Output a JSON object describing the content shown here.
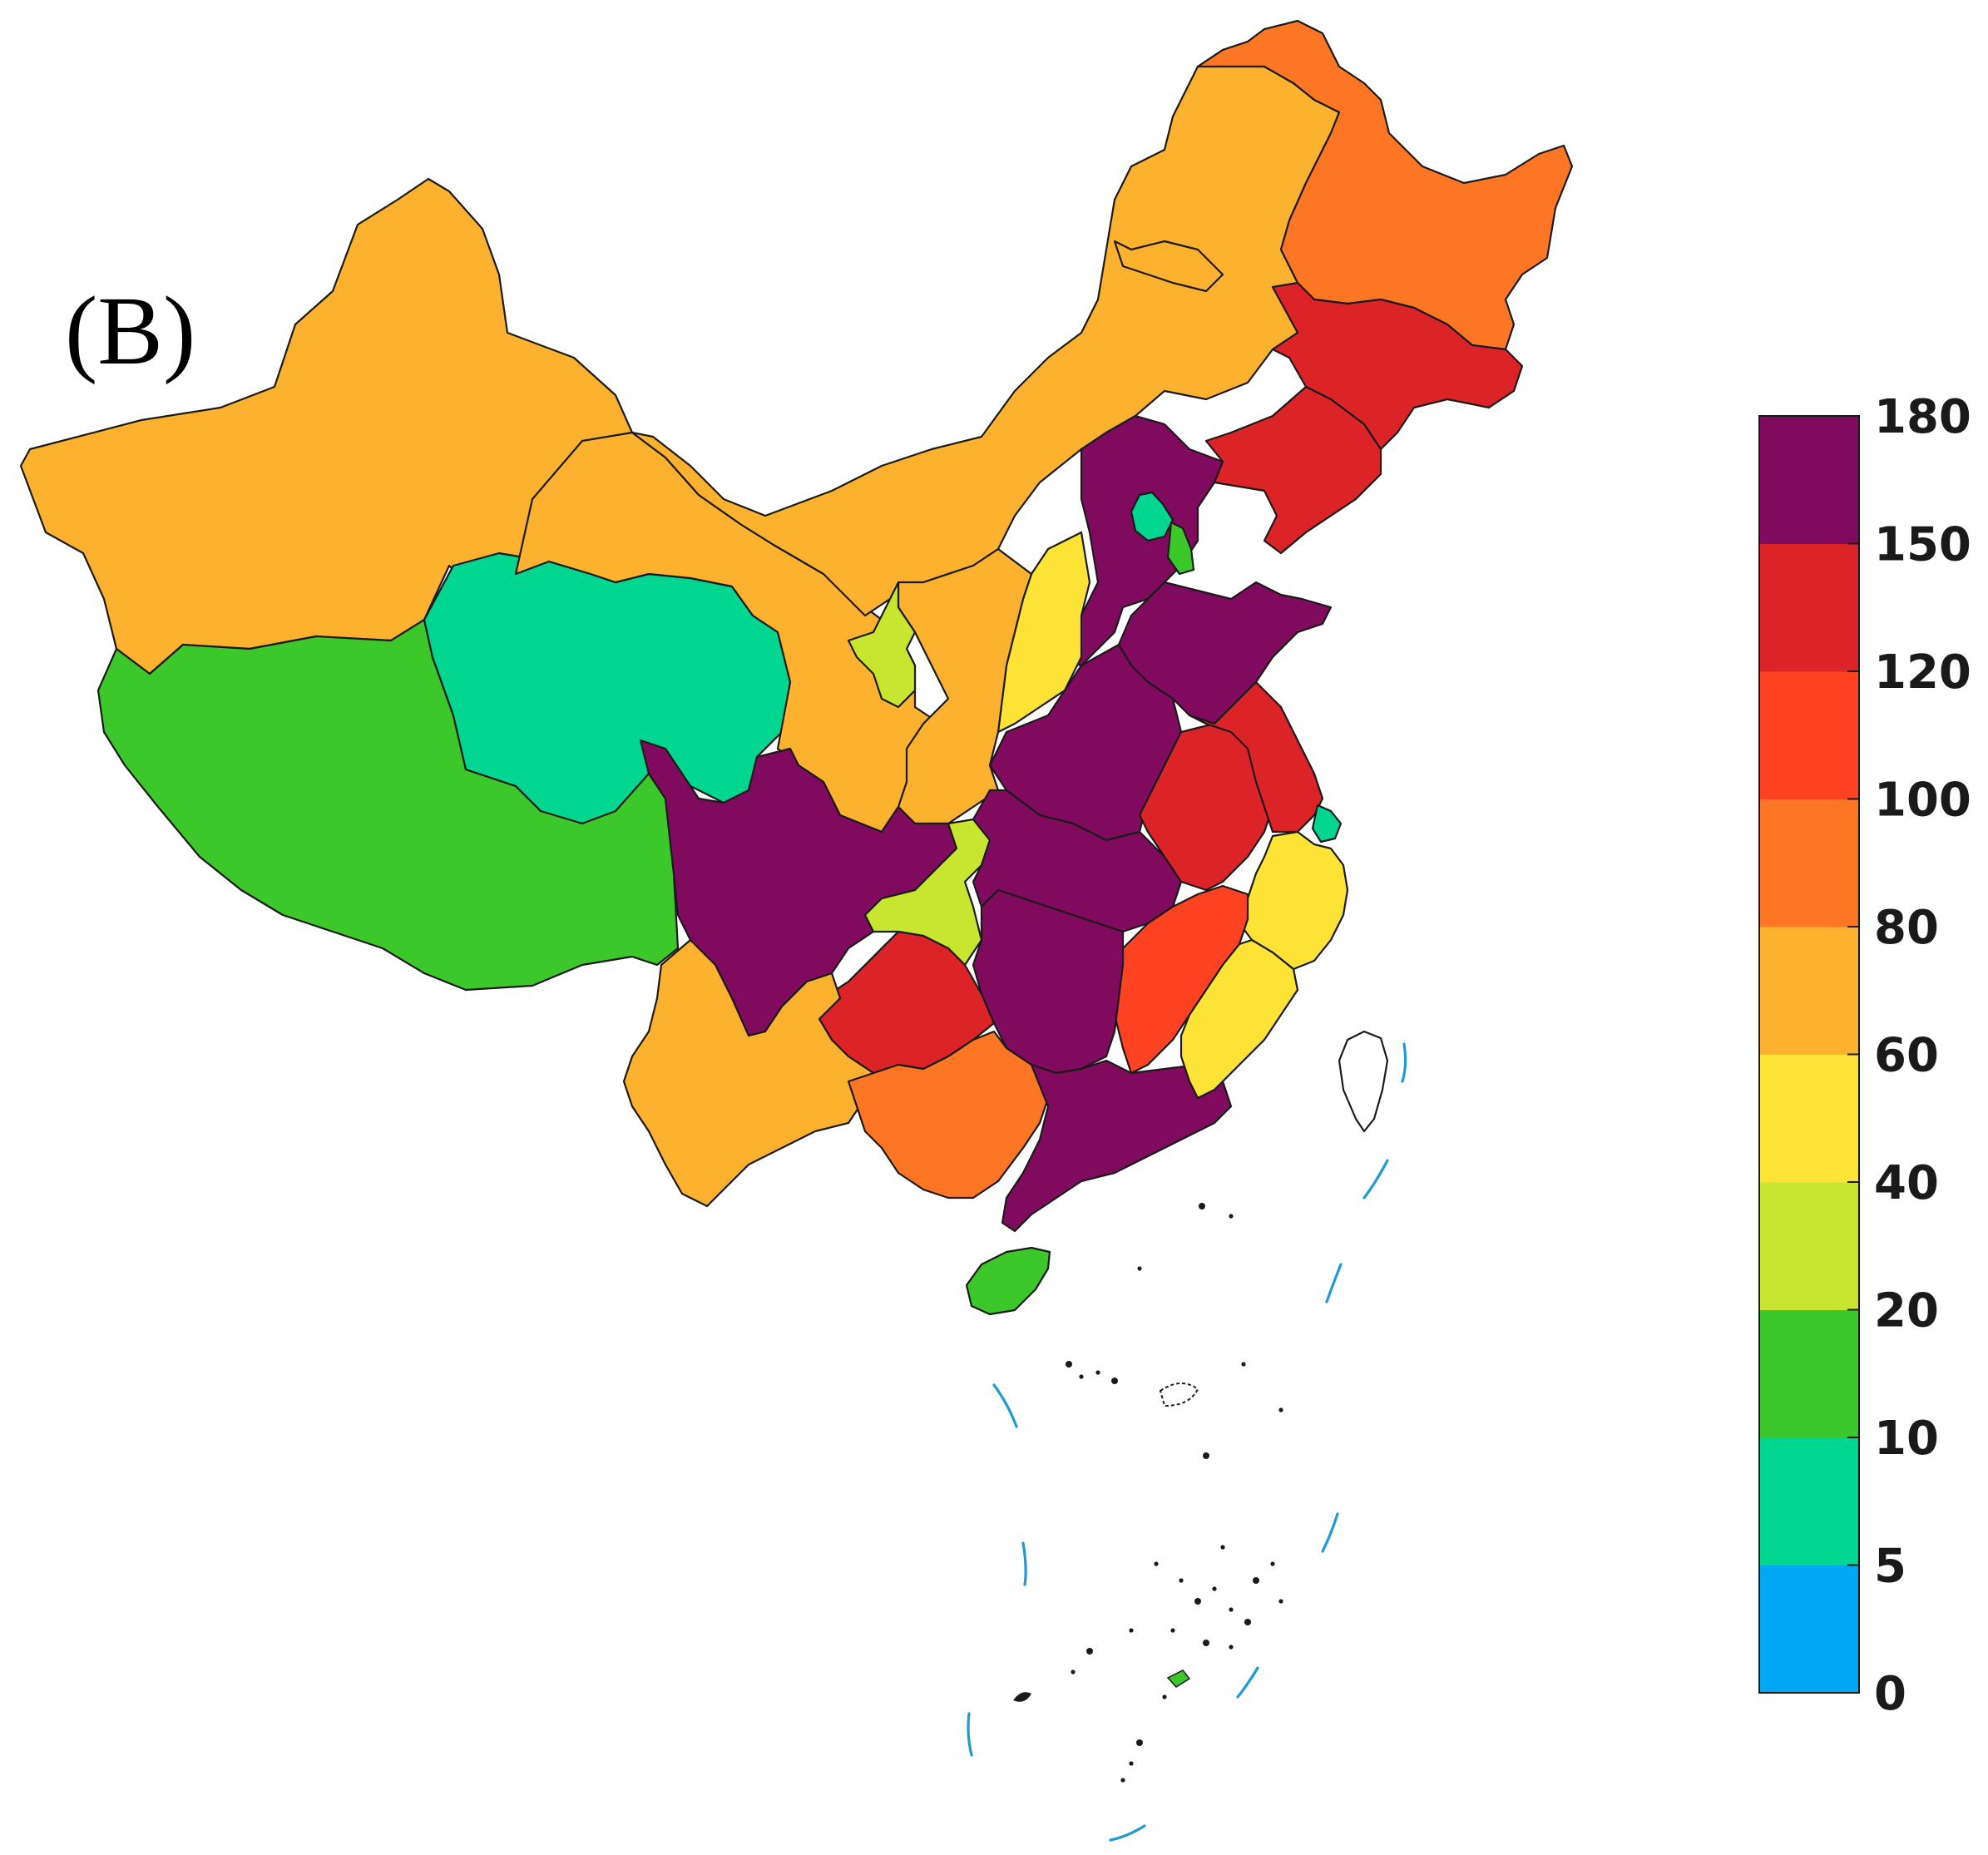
{
  "panel_label": "(B)",
  "legend": {
    "ticks": [
      "0",
      "5",
      "10",
      "20",
      "40",
      "60",
      "80",
      "100",
      "120",
      "150",
      "180"
    ],
    "bins": [
      {
        "range": "0-5",
        "color": "#00a8f5"
      },
      {
        "range": "5-10",
        "color": "#00d68f"
      },
      {
        "range": "10-20",
        "color": "#3cc72a"
      },
      {
        "range": "20-40",
        "color": "#c8e630"
      },
      {
        "range": "40-60",
        "color": "#fde336"
      },
      {
        "range": "60-80",
        "color": "#fdb22f"
      },
      {
        "range": "80-100",
        "color": "#fd7624"
      },
      {
        "range": "100-120",
        "color": "#fe4222"
      },
      {
        "range": "120-150",
        "color": "#dc2428"
      },
      {
        "range": "150-180",
        "color": "#800a5e"
      }
    ]
  },
  "regions": [
    {
      "name": "xinjiang",
      "bin": "60-80"
    },
    {
      "name": "tibet",
      "bin": "10-20"
    },
    {
      "name": "qinghai",
      "bin": "5-10"
    },
    {
      "name": "gansu",
      "bin": "60-80"
    },
    {
      "name": "inner-mongolia",
      "bin": "60-80"
    },
    {
      "name": "heilongjiang",
      "bin": "80-100"
    },
    {
      "name": "jilin",
      "bin": "120-150"
    },
    {
      "name": "liaoning",
      "bin": "120-150"
    },
    {
      "name": "hebei",
      "bin": "150-180"
    },
    {
      "name": "beijing",
      "bin": "5-10"
    },
    {
      "name": "tianjin",
      "bin": "10-20"
    },
    {
      "name": "shanxi",
      "bin": "40-60"
    },
    {
      "name": "shandong",
      "bin": "150-180"
    },
    {
      "name": "henan",
      "bin": "150-180"
    },
    {
      "name": "shaanxi",
      "bin": "60-80"
    },
    {
      "name": "ningxia",
      "bin": "20-40"
    },
    {
      "name": "sichuan",
      "bin": "150-180"
    },
    {
      "name": "chongqing",
      "bin": "20-40"
    },
    {
      "name": "hubei",
      "bin": "150-180"
    },
    {
      "name": "anhui",
      "bin": "120-150"
    },
    {
      "name": "jiangsu",
      "bin": "120-150"
    },
    {
      "name": "shanghai",
      "bin": "5-10"
    },
    {
      "name": "zhejiang",
      "bin": "40-60"
    },
    {
      "name": "jiangxi",
      "bin": "100-120"
    },
    {
      "name": "hunan",
      "bin": "150-180"
    },
    {
      "name": "guizhou",
      "bin": "120-150"
    },
    {
      "name": "yunnan",
      "bin": "60-80"
    },
    {
      "name": "guangxi",
      "bin": "80-100"
    },
    {
      "name": "guangdong",
      "bin": "150-180"
    },
    {
      "name": "fujian",
      "bin": "40-60"
    },
    {
      "name": "hainan",
      "bin": "10-20"
    },
    {
      "name": "taiwan",
      "bin": "none"
    }
  ]
}
